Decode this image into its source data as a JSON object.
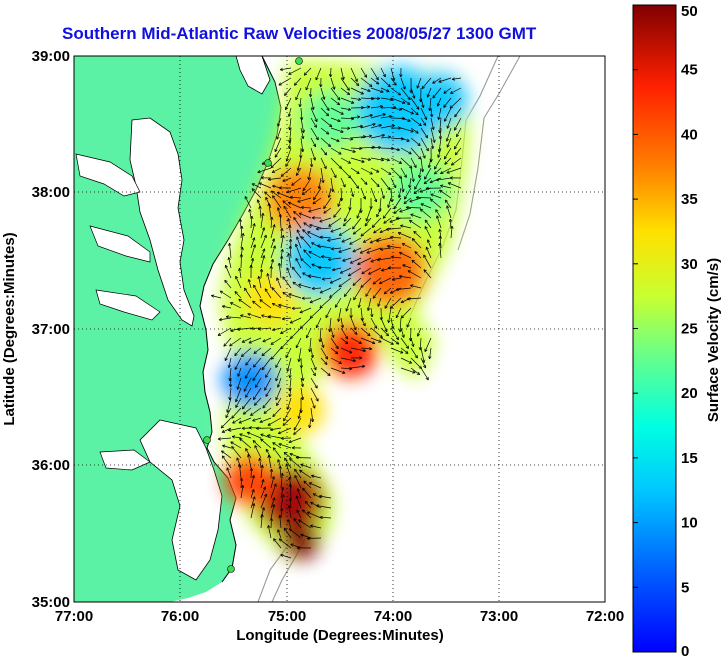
{
  "title": "Southern Mid-Atlantic Raw Velocities 2008/05/27 1300 GMT",
  "xlabel": "Longitude (Degrees:Minutes)",
  "ylabel": "Latitude (Degrees:Minutes)",
  "colorbar_label": "Surface Velocity (cm/s)",
  "x_ticks": [
    "77:00",
    "76:00",
    "75:00",
    "74:00",
    "73:00",
    "72:00"
  ],
  "y_ticks": [
    "39:00",
    "38:00",
    "37:00",
    "36:00",
    "35:00"
  ],
  "colorbar_ticks": [
    "50",
    "45",
    "40",
    "35",
    "30",
    "25",
    "20",
    "15",
    "10",
    "5",
    "0"
  ],
  "chart_data": {
    "type": "heatmap",
    "title": "Southern Mid-Atlantic Raw Velocities 2008/05/27 1300 GMT",
    "xlabel": "Longitude (Degrees:Minutes)",
    "ylabel": "Latitude (Degrees:Minutes)",
    "xlim": [
      -77.0,
      -72.0
    ],
    "ylim": [
      35.0,
      39.0
    ],
    "colorbar": {
      "label": "Surface Velocity (cm/s)",
      "range": [
        0,
        50
      ],
      "colormap": "jet"
    },
    "grid": true,
    "regions": [
      {
        "lon": -74.3,
        "lat": 38.6,
        "velocity_cm_s": 12
      },
      {
        "lon": -74.0,
        "lat": 38.5,
        "velocity_cm_s": 10
      },
      {
        "lon": -74.6,
        "lat": 38.0,
        "velocity_cm_s": 22
      },
      {
        "lon": -74.8,
        "lat": 37.55,
        "velocity_cm_s": 10
      },
      {
        "lon": -74.1,
        "lat": 37.4,
        "velocity_cm_s": 35
      },
      {
        "lon": -74.7,
        "lat": 36.85,
        "velocity_cm_s": 45
      },
      {
        "lon": -75.2,
        "lat": 36.55,
        "velocity_cm_s": 12
      },
      {
        "lon": -74.6,
        "lat": 35.7,
        "velocity_cm_s": 48
      }
    ],
    "colors": {
      "land": "#5cf2a6",
      "title": "#1010e0",
      "grid": "#000000"
    }
  }
}
